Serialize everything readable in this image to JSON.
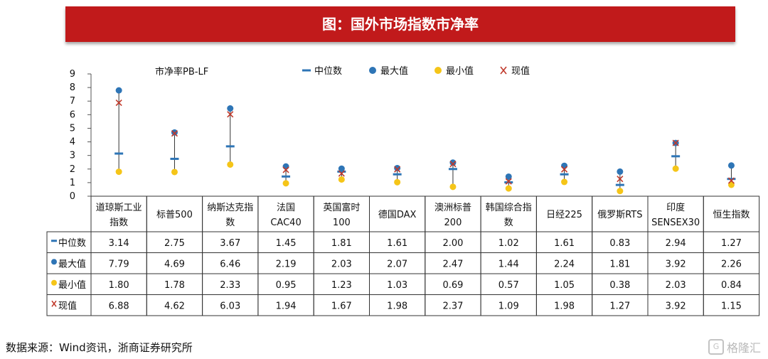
{
  "banner": {
    "title": "图：国外市场指数市净率"
  },
  "chart_data": {
    "type": "scatter",
    "title": "市净率PB-LF",
    "ylim": [
      0,
      9
    ],
    "yticks": [
      0,
      1,
      2,
      3,
      4,
      5,
      6,
      7,
      8,
      9
    ],
    "grid": false,
    "legend_position": "top",
    "categories": [
      [
        "道琼斯工业",
        "指数"
      ],
      [
        "标普500"
      ],
      [
        "纳斯达克指",
        "数"
      ],
      [
        "法国",
        "CAC40"
      ],
      [
        "英国富时",
        "100"
      ],
      [
        "德国DAX"
      ],
      [
        "澳洲标普",
        "200"
      ],
      [
        "韩国综合指",
        "数"
      ],
      [
        "日经225"
      ],
      [
        "俄罗斯RTS"
      ],
      [
        "印度",
        "SENSEX30"
      ],
      [
        "恒生指数"
      ]
    ],
    "series": [
      {
        "name": "中位数",
        "marker": "dash",
        "color": "#2e75b6",
        "values": [
          3.14,
          2.75,
          3.67,
          1.45,
          1.81,
          1.61,
          2.0,
          1.02,
          1.61,
          0.83,
          2.94,
          1.27
        ]
      },
      {
        "name": "最大值",
        "marker": "circle",
        "color": "#2e75b6",
        "values": [
          7.79,
          4.69,
          6.46,
          2.19,
          2.03,
          2.07,
          2.47,
          1.44,
          2.24,
          1.81,
          3.92,
          2.26
        ]
      },
      {
        "name": "最小值",
        "marker": "circle",
        "color": "#f5c518",
        "values": [
          1.8,
          1.78,
          2.33,
          0.95,
          1.23,
          1.03,
          0.69,
          0.57,
          1.05,
          0.38,
          2.03,
          0.84
        ]
      },
      {
        "name": "现值",
        "marker": "cross",
        "color": "#c0392b",
        "values": [
          6.88,
          4.62,
          6.03,
          1.94,
          1.67,
          1.98,
          2.37,
          1.09,
          1.98,
          1.27,
          3.92,
          1.15
        ]
      }
    ],
    "table_rows": [
      {
        "label": "中位数",
        "values": [
          "3.14",
          "2.75",
          "3.67",
          "1.45",
          "1.81",
          "1.61",
          "2.00",
          "1.02",
          "1.61",
          "0.83",
          "2.94",
          "1.27"
        ]
      },
      {
        "label": "最大值",
        "values": [
          "7.79",
          "4.69",
          "6.46",
          "2.19",
          "2.03",
          "2.07",
          "2.47",
          "1.44",
          "2.24",
          "1.81",
          "3.92",
          "2.26"
        ]
      },
      {
        "label": "最小值",
        "values": [
          "1.80",
          "1.78",
          "2.33",
          "0.95",
          "1.23",
          "1.03",
          "0.69",
          "0.57",
          "1.05",
          "0.38",
          "2.03",
          "0.84"
        ]
      },
      {
        "label": "现值",
        "values": [
          "6.88",
          "4.62",
          "6.03",
          "1.94",
          "1.67",
          "1.98",
          "2.37",
          "1.09",
          "1.98",
          "1.27",
          "3.92",
          "1.15"
        ]
      }
    ]
  },
  "footer": {
    "source": "数据来源：Wind资讯，浙商证券研究所"
  },
  "watermark": {
    "text": "格隆汇",
    "icon": "G"
  }
}
